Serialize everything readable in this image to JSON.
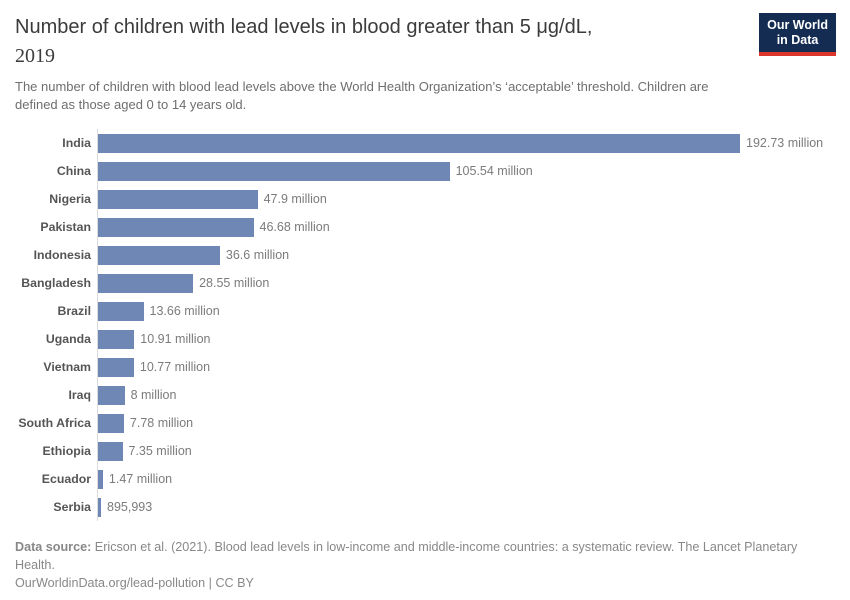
{
  "header": {
    "title_line1": "Number of children with lead levels in blood greater than 5 μg/dL,",
    "title_year": "2019",
    "subtitle": "The number of children with blood lead levels above the World Health Organization’s ‘acceptable’ threshold. Children are defined as those aged 0 to 14 years old.",
    "logo": {
      "line1": "Our World",
      "line2": "in Data",
      "bg_color": "#142b52",
      "accent_color": "#dc352b"
    }
  },
  "chart_data": {
    "type": "bar",
    "orientation": "horizontal",
    "title": "Number of children with lead levels in blood greater than 5 μg/dL, 2019",
    "categories": [
      "India",
      "China",
      "Nigeria",
      "Pakistan",
      "Indonesia",
      "Bangladesh",
      "Brazil",
      "Uganda",
      "Vietnam",
      "Iraq",
      "South Africa",
      "Ethiopia",
      "Ecuador",
      "Serbia"
    ],
    "values": [
      192730000,
      105540000,
      47900000,
      46680000,
      36600000,
      28550000,
      13660000,
      10910000,
      10770000,
      8000000,
      7780000,
      7350000,
      1470000,
      895993
    ],
    "value_labels": [
      "192.73 million",
      "105.54 million",
      "47.9 million",
      "46.68 million",
      "36.6 million",
      "28.55 million",
      "13.66 million",
      "10.91 million",
      "10.77 million",
      "8 million",
      "7.78 million",
      "7.35 million",
      "1.47 million",
      "895,993"
    ],
    "xlim": [
      0,
      192730000
    ],
    "bar_color": "#6e87b4",
    "axis_line_color": "#dcdcdc",
    "grid": false,
    "legend": "none"
  },
  "footer": {
    "datasource_label": "Data source:",
    "datasource_text": " Ericson et al. (2021). Blood lead levels in low-income and middle-income countries: a systematic review. The Lancet Planetary Health.",
    "link_line": "OurWorldinData.org/lead-pollution | CC BY"
  }
}
